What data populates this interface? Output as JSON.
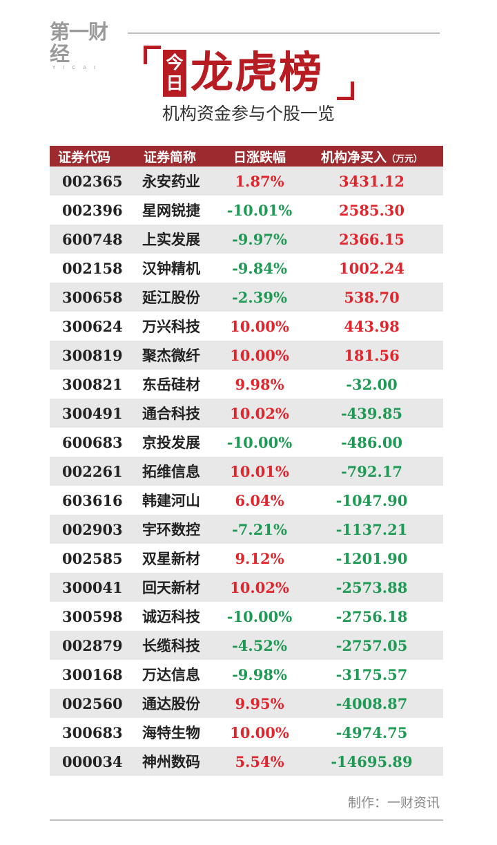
{
  "brand": {
    "logo_text": "第一财经",
    "logo_sub": "YICAI"
  },
  "title": {
    "badge_chars": [
      "今",
      "日"
    ],
    "main": "龙虎榜",
    "subtitle": "机构资金参与个股一览"
  },
  "table": {
    "headers": {
      "code": "证券代码",
      "name": "证券简称",
      "change": "日涨跌幅",
      "net_buy": "机构净买入",
      "net_buy_unit": "（万元）"
    },
    "rows": [
      {
        "code": "002365",
        "name": "永安药业",
        "change": "1.87%",
        "net_buy": "3431.12",
        "change_dir": "up",
        "net_dir": "up"
      },
      {
        "code": "002396",
        "name": "星网锐捷",
        "change": "-10.01%",
        "net_buy": "2585.30",
        "change_dir": "down",
        "net_dir": "up"
      },
      {
        "code": "600748",
        "name": "上实发展",
        "change": "-9.97%",
        "net_buy": "2366.15",
        "change_dir": "down",
        "net_dir": "up"
      },
      {
        "code": "002158",
        "name": "汉钟精机",
        "change": "-9.84%",
        "net_buy": "1002.24",
        "change_dir": "down",
        "net_dir": "up"
      },
      {
        "code": "300658",
        "name": "延江股份",
        "change": "-2.39%",
        "net_buy": "538.70",
        "change_dir": "down",
        "net_dir": "up"
      },
      {
        "code": "300624",
        "name": "万兴科技",
        "change": "10.00%",
        "net_buy": "443.98",
        "change_dir": "up",
        "net_dir": "up"
      },
      {
        "code": "300819",
        "name": "聚杰微纤",
        "change": "10.00%",
        "net_buy": "181.56",
        "change_dir": "up",
        "net_dir": "up"
      },
      {
        "code": "300821",
        "name": "东岳硅材",
        "change": "9.98%",
        "net_buy": "-32.00",
        "change_dir": "up",
        "net_dir": "down"
      },
      {
        "code": "300491",
        "name": "通合科技",
        "change": "10.02%",
        "net_buy": "-439.85",
        "change_dir": "up",
        "net_dir": "down"
      },
      {
        "code": "600683",
        "name": "京投发展",
        "change": "-10.00%",
        "net_buy": "-486.00",
        "change_dir": "down",
        "net_dir": "down"
      },
      {
        "code": "002261",
        "name": "拓维信息",
        "change": "10.01%",
        "net_buy": "-792.17",
        "change_dir": "up",
        "net_dir": "down"
      },
      {
        "code": "603616",
        "name": "韩建河山",
        "change": "6.04%",
        "net_buy": "-1047.90",
        "change_dir": "up",
        "net_dir": "down"
      },
      {
        "code": "002903",
        "name": "宇环数控",
        "change": "-7.21%",
        "net_buy": "-1137.21",
        "change_dir": "down",
        "net_dir": "down"
      },
      {
        "code": "002585",
        "name": "双星新材",
        "change": "9.12%",
        "net_buy": "-1201.90",
        "change_dir": "up",
        "net_dir": "down"
      },
      {
        "code": "300041",
        "name": "回天新材",
        "change": "10.02%",
        "net_buy": "-2573.88",
        "change_dir": "up",
        "net_dir": "down"
      },
      {
        "code": "300598",
        "name": "诚迈科技",
        "change": "-10.00%",
        "net_buy": "-2756.18",
        "change_dir": "down",
        "net_dir": "down"
      },
      {
        "code": "002879",
        "name": "长缆科技",
        "change": "-4.52%",
        "net_buy": "-2757.05",
        "change_dir": "down",
        "net_dir": "down"
      },
      {
        "code": "300168",
        "name": "万达信息",
        "change": "-9.98%",
        "net_buy": "-3175.57",
        "change_dir": "down",
        "net_dir": "down"
      },
      {
        "code": "002560",
        "name": "通达股份",
        "change": "9.95%",
        "net_buy": "-4008.87",
        "change_dir": "up",
        "net_dir": "down"
      },
      {
        "code": "300683",
        "name": "海特生物",
        "change": "10.00%",
        "net_buy": "-4974.75",
        "change_dir": "up",
        "net_dir": "down"
      },
      {
        "code": "000034",
        "name": "神州数码",
        "change": "5.54%",
        "net_buy": "-14695.89",
        "change_dir": "up",
        "net_dir": "down"
      }
    ]
  },
  "footer": {
    "credit": "制作：一财资讯"
  },
  "colors": {
    "brand_red": "#b81c23",
    "header_bg": "#9c2a2e",
    "up": "#e0262c",
    "down": "#1f9a55",
    "stripe": "#e8e8e8"
  }
}
